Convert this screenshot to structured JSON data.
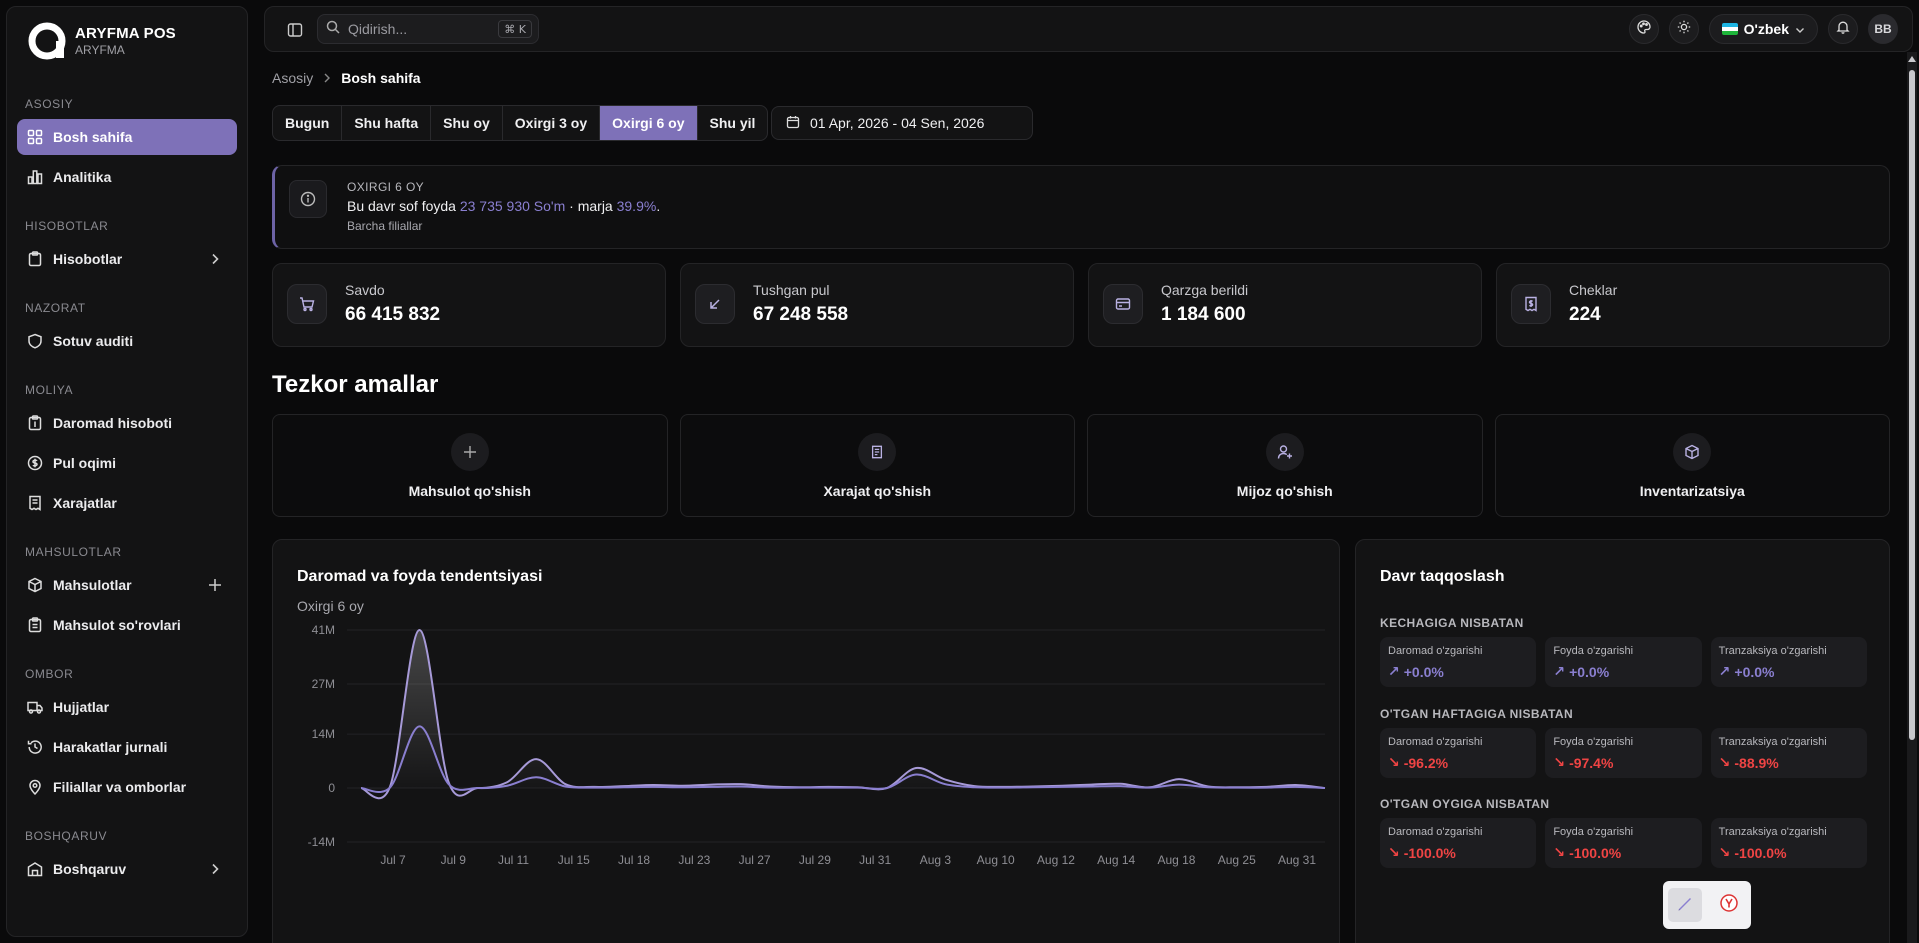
{
  "brand": {
    "title": "ARYFMA POS",
    "subtitle": "ARYFMA"
  },
  "sidebar": {
    "sections": [
      {
        "title": "ASOSIY",
        "items": [
          {
            "label": "Bosh sahifa",
            "icon": "dashboard-icon",
            "active": true
          },
          {
            "label": "Analitika",
            "icon": "chart-icon"
          }
        ]
      },
      {
        "title": "HISOBOTLAR",
        "items": [
          {
            "label": "Hisobotlar",
            "icon": "clipboard-icon",
            "chevron": true
          }
        ]
      },
      {
        "title": "NAZORAT",
        "items": [
          {
            "label": "Sotuv auditi",
            "icon": "shield-icon"
          }
        ]
      },
      {
        "title": "MOLIYA",
        "items": [
          {
            "label": "Daromad hisoboti",
            "icon": "clipboard-dollar-icon"
          },
          {
            "label": "Pul oqimi",
            "icon": "dollar-circle-icon"
          },
          {
            "label": "Xarajatlar",
            "icon": "receipt-icon"
          }
        ]
      },
      {
        "title": "MAHSULOTLAR",
        "items": [
          {
            "label": "Mahsulotlar",
            "icon": "box-icon",
            "plus": true
          },
          {
            "label": "Mahsulot so'rovlari",
            "icon": "clipboard-list-icon"
          }
        ]
      },
      {
        "title": "OMBOR",
        "items": [
          {
            "label": "Hujjatlar",
            "icon": "truck-icon"
          },
          {
            "label": "Harakatlar jurnali",
            "icon": "history-icon"
          },
          {
            "label": "Filiallar va omborlar",
            "icon": "map-pin-icon"
          }
        ]
      },
      {
        "title": "BOSHQARUV",
        "items": [
          {
            "label": "Boshqaruv",
            "icon": "building-icon",
            "chevron": true
          }
        ]
      }
    ]
  },
  "topbar": {
    "search_placeholder": "Qidirish...",
    "search_shortcut": "⌘ K",
    "language": "O'zbek",
    "avatar_initials": "BB"
  },
  "breadcrumb": {
    "root": "Asosiy",
    "current": "Bosh sahifa"
  },
  "period_buttons": [
    "Bugun",
    "Shu hafta",
    "Shu oy",
    "Oxirgi 3 oy",
    "Oxirgi 6 oy",
    "Shu yil"
  ],
  "period_active": "Oxirgi 6 oy",
  "date_range": "01 Apr, 2026 - 04 Sen, 2026",
  "alert": {
    "heading": "OXIRGI 6 OY",
    "text_pre": "Bu davr sof foyda ",
    "profit": "23 735 930 So'm",
    "text_mid": " · marja ",
    "margin": "39.9%",
    "text_post": ".",
    "scope": "Barcha filiallar"
  },
  "stats": [
    {
      "label": "Savdo",
      "value": "66 415 832",
      "icon": "cart-icon"
    },
    {
      "label": "Tushgan pul",
      "value": "67 248 558",
      "icon": "arrow-down-left-icon"
    },
    {
      "label": "Qarzga berildi",
      "value": "1 184 600",
      "icon": "credit-card-icon"
    },
    {
      "label": "Cheklar",
      "value": "224",
      "icon": "receipt-dollar-icon"
    }
  ],
  "quick_actions_title": "Tezkor amallar",
  "quick_actions": [
    {
      "label": "Mahsulot qo'shish",
      "icon": "plus-icon"
    },
    {
      "label": "Xarajat qo'shish",
      "icon": "receipt-icon"
    },
    {
      "label": "Mijoz qo'shish",
      "icon": "user-plus-icon"
    },
    {
      "label": "Inventarizatsiya",
      "icon": "box-icon"
    }
  ],
  "trend": {
    "title": "Daromad va foyda tendentsiyasi",
    "subtitle": "Oxirgi 6 oy"
  },
  "chart_data": {
    "type": "area",
    "title": "Daromad va foyda tendentsiyasi",
    "subtitle": "Oxirgi 6 oy",
    "y_ticks": [
      "41M",
      "27M",
      "14M",
      "0",
      "-14M"
    ],
    "ylim": [
      -14,
      41
    ],
    "x_tick_labels": [
      "Jul 7",
      "Jul 9",
      "Jul 11",
      "Jul 15",
      "Jul 18",
      "Jul 23",
      "Jul 27",
      "Jul 29",
      "Jul 31",
      "Aug 3",
      "Aug 10",
      "Aug 12",
      "Aug 14",
      "Aug 18",
      "Aug 25",
      "Aug 31"
    ],
    "x": [
      "Jul 3",
      "Jul 6",
      "Jul 7",
      "Jul 8",
      "Jul 9",
      "Jul 10",
      "Jul 11",
      "Jul 12",
      "Jul 13",
      "Jul 14",
      "Jul 15",
      "Jul 18",
      "Jul 20",
      "Jul 23",
      "Jul 25",
      "Jul 27",
      "Jul 28",
      "Jul 29",
      "Jul 30",
      "Jul 31",
      "Aug 1",
      "Aug 3",
      "Aug 6",
      "Aug 10",
      "Aug 11",
      "Aug 12",
      "Aug 13",
      "Aug 14",
      "Aug 16",
      "Aug 18",
      "Aug 22",
      "Aug 25",
      "Aug 29",
      "Aug 31"
    ],
    "series": [
      {
        "values": [
          0,
          0.5,
          41,
          1.5,
          0,
          1.5,
          7.5,
          1.0,
          0.3,
          0.5,
          0.8,
          0.6,
          0.9,
          1.0,
          0.4,
          0.2,
          0.3,
          0.2,
          0,
          5.2,
          2.2,
          0.5,
          0.3,
          0.4,
          0.6,
          0.9,
          1.1,
          0.2,
          2.3,
          0.4,
          0.2,
          0.3,
          0.8,
          0
        ],
        "color": "#a79ad8"
      },
      {
        "values": [
          0,
          0.2,
          16,
          1.0,
          0,
          0.6,
          2.8,
          0.4,
          0.1,
          0.2,
          0.3,
          0.2,
          0.3,
          0.4,
          0.1,
          0.1,
          0.1,
          0.1,
          0,
          3.5,
          1.0,
          0.2,
          0.1,
          0.2,
          0.3,
          0.4,
          0.5,
          0.1,
          0.9,
          0.2,
          0.1,
          0.1,
          0.3,
          0
        ],
        "color": "#8a7fd0"
      }
    ]
  },
  "comparison": {
    "title": "Davr taqqoslash",
    "groups": [
      {
        "title": "KECHAGIGA NISBATAN",
        "cells": [
          {
            "label": "Daromad o'zgarishi",
            "value": "+0.0%",
            "trend": "neu"
          },
          {
            "label": "Foyda o'zgarishi",
            "value": "+0.0%",
            "trend": "neu"
          },
          {
            "label": "Tranzaksiya o'zgarishi",
            "value": "+0.0%",
            "trend": "neu"
          }
        ]
      },
      {
        "title": "O'TGAN HAFTAGIGA NISBATAN",
        "cells": [
          {
            "label": "Daromad o'zgarishi",
            "value": "-96.2%",
            "trend": "neg"
          },
          {
            "label": "Foyda o'zgarishi",
            "value": "-97.4%",
            "trend": "neg"
          },
          {
            "label": "Tranzaksiya o'zgarishi",
            "value": "-88.9%",
            "trend": "neg"
          }
        ]
      },
      {
        "title": "O'TGAN OYGIGA NISBATAN",
        "cells": [
          {
            "label": "Daromad o'zgarishi",
            "value": "-100.0%",
            "trend": "neg"
          },
          {
            "label": "Foyda o'zgarishi",
            "value": "-100.0%",
            "trend": "neg"
          },
          {
            "label": "Tranzaksiya o'zgarishi",
            "value": "-100.0%",
            "trend": "neg"
          }
        ]
      }
    ]
  },
  "colors": {
    "accent": "#7e71b8",
    "negative": "#ef4444",
    "neutral_trend": "#8a7fd0"
  }
}
